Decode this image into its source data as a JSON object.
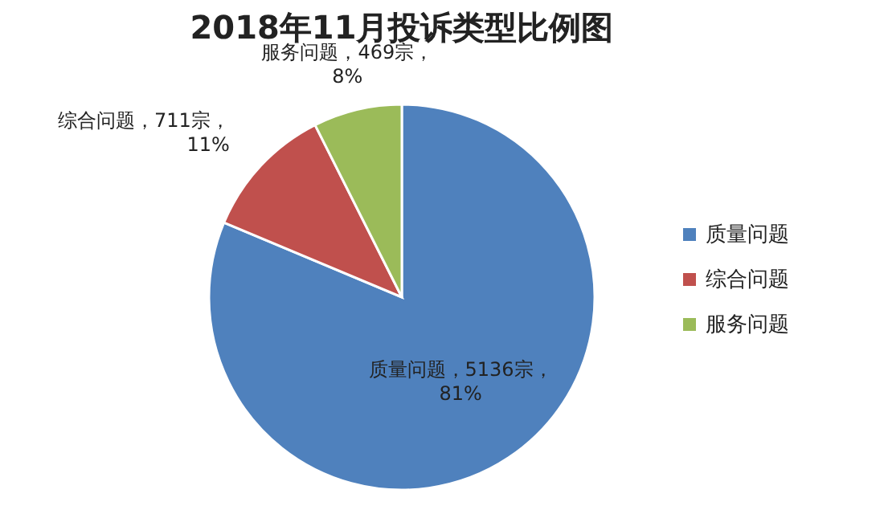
{
  "chart_data": {
    "type": "pie",
    "title": "2018年11月投诉类型比例图",
    "categories": [
      "质量问题",
      "综合问题",
      "服务问题"
    ],
    "values": [
      5136,
      711,
      469
    ],
    "colors": [
      "#4f81bd",
      "#c0504d",
      "#9bbb59"
    ],
    "value_labels": [
      "质量问题，5136宗，\n81%",
      "综合问题，711宗，\n11%",
      "服务问题，469宗，\n8%"
    ],
    "legend": "right"
  }
}
